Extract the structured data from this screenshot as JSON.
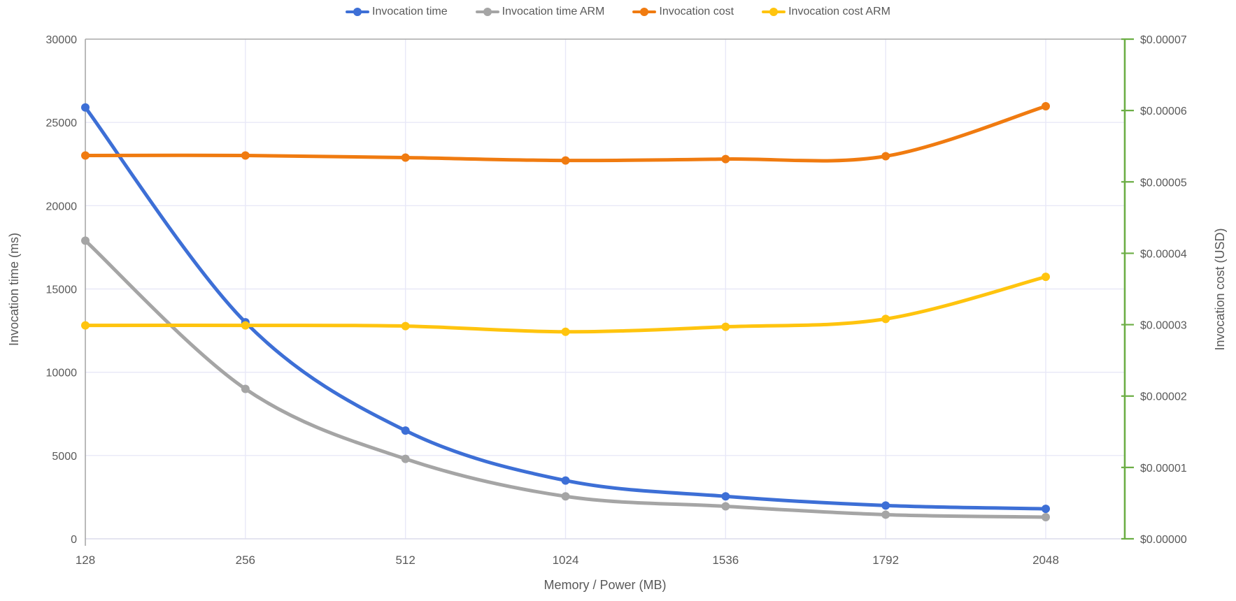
{
  "chart_data": {
    "type": "line",
    "title": "",
    "categories": [
      "128",
      "256",
      "512",
      "1024",
      "1536",
      "1792",
      "2048"
    ],
    "xlabel": "Memory / Power (MB)",
    "ylabel_left": "Invocation time (ms)",
    "ylabel_right": "Invocation cost (USD)",
    "grid": true,
    "legend_position": "top",
    "y_left": {
      "min": 0,
      "max": 30000,
      "step": 5000,
      "tick_labels": [
        "0",
        "5000",
        "10000",
        "15000",
        "20000",
        "25000",
        "30000"
      ]
    },
    "y_right": {
      "min": 0,
      "max": 7e-05,
      "step": 1e-05,
      "tick_labels": [
        "$0.00000",
        "$0.00001",
        "$0.00002",
        "$0.00003",
        "$0.00004",
        "$0.00005",
        "$0.00006",
        "$0.00007"
      ]
    },
    "series": [
      {
        "name": "Invocation time",
        "axis": "left",
        "color": "#3D6FD6",
        "values": [
          25900,
          13000,
          6500,
          3500,
          2550,
          2000,
          1800
        ]
      },
      {
        "name": "Invocation time ARM",
        "axis": "left",
        "color": "#A5A5A5",
        "values": [
          17900,
          9000,
          4800,
          2550,
          1950,
          1450,
          1300
        ]
      },
      {
        "name": "Invocation cost",
        "axis": "right",
        "color": "#F07B10",
        "values": [
          5.37e-05,
          5.37e-05,
          5.34e-05,
          5.3e-05,
          5.32e-05,
          5.36e-05,
          6.06e-05
        ]
      },
      {
        "name": "Invocation cost ARM",
        "axis": "right",
        "color": "#FFC40E",
        "values": [
          2.99e-05,
          2.99e-05,
          2.98e-05,
          2.9e-05,
          2.97e-05,
          3.08e-05,
          3.67e-05
        ]
      }
    ],
    "colors": {
      "right_axis": "#6CAE45",
      "text": "#595959",
      "gridline": "#E8E8F7",
      "axis_line": "#A8A8A8",
      "bottom_line": "#DCDCEC"
    }
  }
}
